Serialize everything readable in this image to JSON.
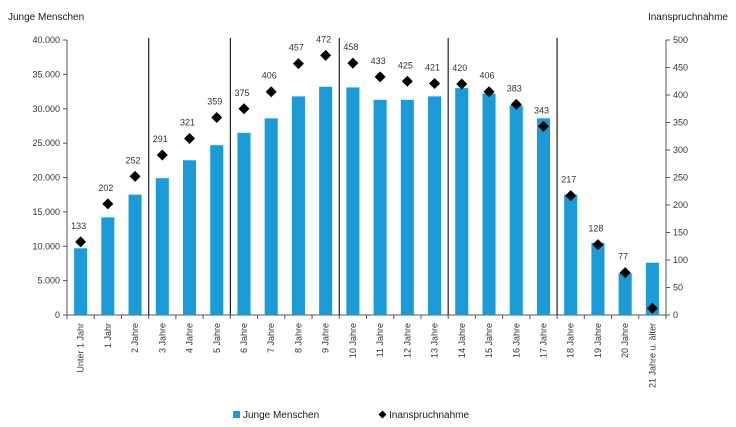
{
  "chart_data": {
    "type": "bar",
    "categories": [
      "Unter 1 Jahr",
      "1 Jahr",
      "2 Jahre",
      "3 Jahre",
      "4 Jahre",
      "5 Jahre",
      "6 Jahre",
      "7 Jahre",
      "8 Jahre",
      "9 Jahre",
      "10 Jahre",
      "11 Jahre",
      "12 Jahre",
      "13 Jahre",
      "14 Jahre",
      "15 Jahre",
      "16 Jahre",
      "17 Jahre",
      "18 Jahre",
      "19 Jahre",
      "20 Jahre",
      "21 Jahre u. älter"
    ],
    "series": [
      {
        "name": "Junge Menschen",
        "type": "bar",
        "axis": "left",
        "color": "#1a9ad6",
        "values": [
          9700,
          14200,
          17500,
          19900,
          22500,
          24700,
          26500,
          28600,
          31800,
          33200,
          33100,
          31300,
          31300,
          31800,
          33000,
          32200,
          30500,
          28600,
          17500,
          10500,
          6100,
          7600
        ]
      },
      {
        "name": "Inanspruchnahme",
        "type": "marker",
        "axis": "right",
        "color": "#000000",
        "values": [
          133,
          202,
          252,
          291,
          321,
          359,
          375,
          406,
          457,
          472,
          458,
          433,
          425,
          421,
          420,
          406,
          383,
          343,
          217,
          128,
          77,
          12
        ],
        "labels": [
          "133",
          "202",
          "252",
          "291",
          "321",
          "359",
          "375",
          "406",
          "457",
          "472",
          "458",
          "433",
          "425",
          "421",
          "420",
          "406",
          "383",
          "343",
          "217",
          "128",
          "77",
          ""
        ]
      }
    ],
    "ylabel": "Junge Menschen",
    "y2label": "Inanspruchnahme",
    "ylim": [
      0,
      40000
    ],
    "y2lim": [
      0,
      500
    ],
    "yticks": [
      "0",
      "5.000",
      "10.000",
      "15.000",
      "20.000",
      "25.000",
      "30.000",
      "35.000",
      "40.000"
    ],
    "y2ticks": [
      "0",
      "50",
      "100",
      "150",
      "200",
      "250",
      "300",
      "350",
      "400",
      "450",
      "500"
    ],
    "group_separators_after": [
      2,
      5,
      9,
      13,
      17
    ],
    "legend": {
      "position": "bottom",
      "items": [
        {
          "label": "Junge Menschen",
          "marker": "square",
          "color": "#1a9ad6"
        },
        {
          "label": "Inanspruchnahme",
          "marker": "diamond",
          "color": "#000000"
        }
      ]
    },
    "grid": false
  }
}
